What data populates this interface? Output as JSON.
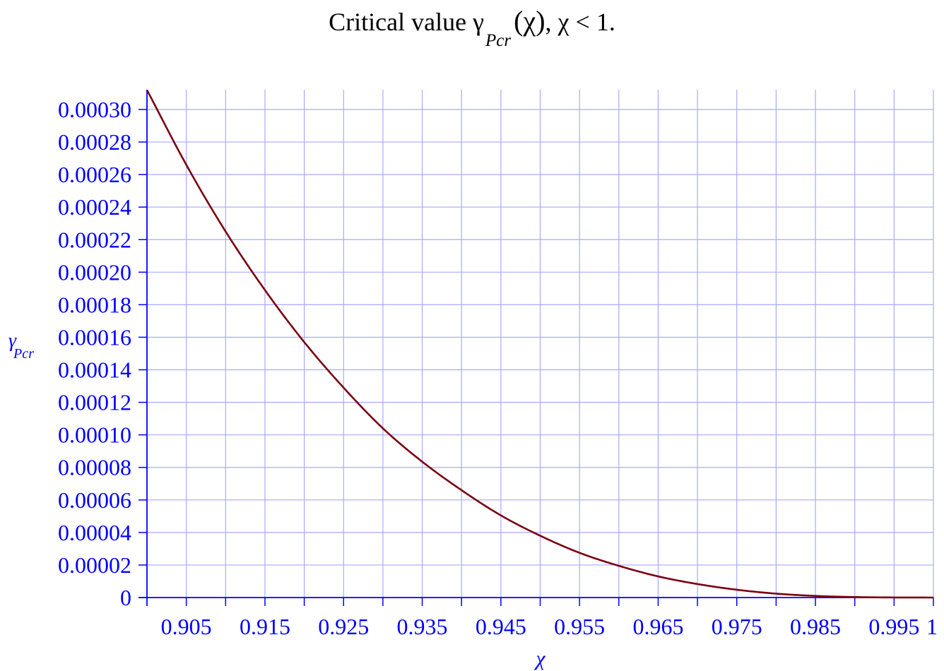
{
  "title": {
    "prefix": "Critical value γ",
    "subscript": "Pcr",
    "suffix_open": "(χ)",
    "suffix_rest": ", χ < 1."
  },
  "colors": {
    "axis": "#0000ff",
    "grid": "#a9a9ff",
    "curve": "#7a0010",
    "text": "#000000"
  },
  "chart_data": {
    "type": "line",
    "title": "Critical value γPcr(χ), χ < 1.",
    "xlabel": "χ",
    "ylabel": "γ",
    "ylabel_sub": "Pcr",
    "xlim": [
      0.9,
      1.0
    ],
    "ylim": [
      0,
      0.00031
    ],
    "grid": true,
    "x_tick_step": 0.005,
    "y_tick_step": 2e-05,
    "x_tick_labels": [
      {
        "value": 0.905,
        "label": "0.905"
      },
      {
        "value": 0.915,
        "label": "0.915"
      },
      {
        "value": 0.925,
        "label": "0.925"
      },
      {
        "value": 0.935,
        "label": "0.935"
      },
      {
        "value": 0.945,
        "label": "0.945"
      },
      {
        "value": 0.955,
        "label": "0.955"
      },
      {
        "value": 0.965,
        "label": "0.965"
      },
      {
        "value": 0.975,
        "label": "0.975"
      },
      {
        "value": 0.985,
        "label": "0.985"
      },
      {
        "value": 0.995,
        "label": "0.995"
      },
      {
        "value": 1.0,
        "label": "1"
      }
    ],
    "y_tick_labels": [
      {
        "value": 0,
        "label": "0"
      },
      {
        "value": 2e-05,
        "label": "0.00002"
      },
      {
        "value": 4e-05,
        "label": "0.00004"
      },
      {
        "value": 6e-05,
        "label": "0.00006"
      },
      {
        "value": 8e-05,
        "label": "0.00008"
      },
      {
        "value": 0.0001,
        "label": "0.00010"
      },
      {
        "value": 0.00012,
        "label": "0.00012"
      },
      {
        "value": 0.00014,
        "label": "0.00014"
      },
      {
        "value": 0.00016,
        "label": "0.00016"
      },
      {
        "value": 0.00018,
        "label": "0.00018"
      },
      {
        "value": 0.0002,
        "label": "0.00020"
      },
      {
        "value": 0.00022,
        "label": "0.00022"
      },
      {
        "value": 0.00024,
        "label": "0.00024"
      },
      {
        "value": 0.00026,
        "label": "0.00026"
      },
      {
        "value": 0.00028,
        "label": "0.00028"
      },
      {
        "value": 0.0003,
        "label": "0.00030"
      }
    ],
    "series": [
      {
        "x": [
          0.9,
          0.905,
          0.91,
          0.915,
          0.92,
          0.925,
          0.93,
          0.935,
          0.94,
          0.945,
          0.95,
          0.955,
          0.96,
          0.965,
          0.97,
          0.975,
          0.98,
          0.985,
          0.99,
          0.995,
          1.0
        ],
        "y": [
          0.000312,
          0.000266,
          0.000225,
          0.000189,
          0.000157,
          0.000129,
          0.000104,
          8.35e-05,
          6.6e-05,
          5.05e-05,
          3.8e-05,
          2.75e-05,
          1.95e-05,
          1.3e-05,
          8.3e-06,
          4.8e-06,
          2.4e-06,
          1e-06,
          3e-07,
          5e-08,
          0.0
        ]
      }
    ]
  }
}
